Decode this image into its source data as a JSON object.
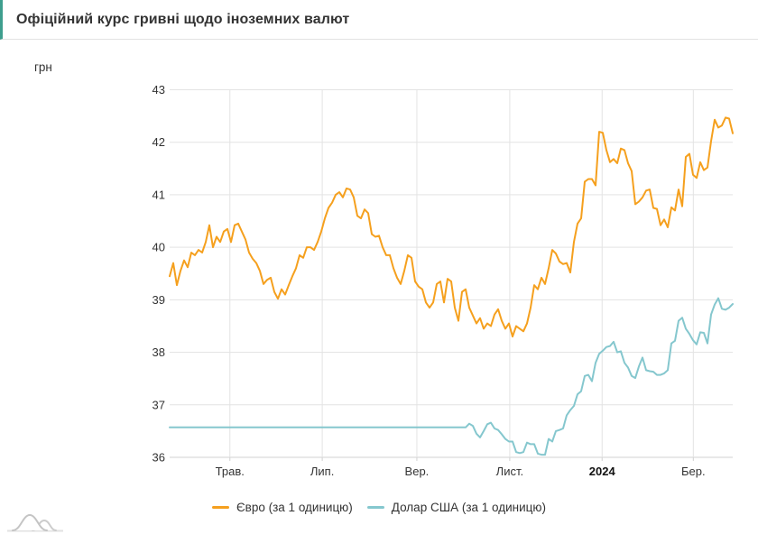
{
  "header": {
    "title": "Офіційний курс гривні щодо іноземних валют"
  },
  "chart": {
    "unit_label": "грн",
    "legend": [
      {
        "label": "Євро (за 1 одиницю)",
        "color": "#F5A01E"
      },
      {
        "label": "Долар США (за 1 одиницю)",
        "color": "#85C7CE"
      }
    ]
  },
  "colors": {
    "accent": "#3E9E8E",
    "grid": "#E3E3E3",
    "axis_line": "#D2D2D2",
    "text": "#333333",
    "tick_text": "#333333",
    "bold_tick_text": "#111111",
    "euro_line": "#F5A01E",
    "dollar_line": "#85C7CE"
  },
  "chart_data": {
    "type": "line",
    "title": "Офіційний курс гривні щодо іноземних валют",
    "xlabel": "",
    "ylabel": "грн",
    "ylim": [
      36,
      43
    ],
    "y_ticks": [
      43,
      42,
      41,
      40,
      39,
      38,
      37,
      36
    ],
    "x_ticks": [
      {
        "label": "Трав.",
        "pos": 0.107,
        "bold": false
      },
      {
        "label": "Лип.",
        "pos": 0.271,
        "bold": false
      },
      {
        "label": "Вер.",
        "pos": 0.439,
        "bold": false
      },
      {
        "label": "Лист.",
        "pos": 0.604,
        "bold": false
      },
      {
        "label": "2024",
        "pos": 0.768,
        "bold": true
      },
      {
        "label": "Бер.",
        "pos": 0.93,
        "bold": false
      }
    ],
    "grid": true,
    "legend_position": "bottom",
    "series": [
      {
        "name": "Євро (за 1 одиницю)",
        "color": "#F5A01E",
        "values": [
          39.45,
          39.7,
          39.28,
          39.55,
          39.75,
          39.62,
          39.9,
          39.85,
          39.95,
          39.9,
          40.1,
          40.42,
          40.0,
          40.2,
          40.1,
          40.3,
          40.35,
          40.1,
          40.42,
          40.45,
          40.3,
          40.15,
          39.9,
          39.78,
          39.7,
          39.55,
          39.3,
          39.38,
          39.42,
          39.15,
          39.02,
          39.2,
          39.1,
          39.28,
          39.45,
          39.6,
          39.85,
          39.8,
          40.0,
          40.0,
          39.95,
          40.1,
          40.3,
          40.55,
          40.75,
          40.85,
          41.0,
          41.05,
          40.95,
          41.12,
          41.1,
          40.95,
          40.6,
          40.55,
          40.72,
          40.65,
          40.25,
          40.2,
          40.22,
          40.0,
          39.85,
          39.85,
          39.6,
          39.42,
          39.3,
          39.55,
          39.85,
          39.8,
          39.35,
          39.25,
          39.2,
          38.95,
          38.85,
          38.95,
          39.3,
          39.35,
          38.95,
          39.4,
          39.35,
          38.85,
          38.6,
          39.15,
          39.2,
          38.85,
          38.7,
          38.55,
          38.65,
          38.45,
          38.55,
          38.5,
          38.72,
          38.82,
          38.6,
          38.45,
          38.55,
          38.3,
          38.5,
          38.45,
          38.4,
          38.55,
          38.85,
          39.28,
          39.2,
          39.42,
          39.3,
          39.6,
          39.95,
          39.88,
          39.73,
          39.68,
          39.7,
          39.52,
          40.1,
          40.45,
          40.55,
          41.25,
          41.3,
          41.3,
          41.18,
          42.2,
          42.18,
          41.85,
          41.62,
          41.68,
          41.6,
          41.88,
          41.85,
          41.6,
          41.45,
          40.82,
          40.87,
          40.95,
          41.08,
          41.1,
          40.75,
          40.73,
          40.42,
          40.53,
          40.38,
          40.76,
          40.7,
          41.1,
          40.78,
          41.72,
          41.78,
          41.38,
          41.32,
          41.62,
          41.47,
          41.52,
          42.02,
          42.43,
          42.28,
          42.32,
          42.47,
          42.45,
          42.17
        ]
      },
      {
        "name": "Долар США (за 1 одиницю)",
        "color": "#85C7CE",
        "values": [
          36.57,
          36.57,
          36.57,
          36.57,
          36.57,
          36.57,
          36.57,
          36.57,
          36.57,
          36.57,
          36.57,
          36.57,
          36.57,
          36.57,
          36.57,
          36.57,
          36.57,
          36.57,
          36.57,
          36.57,
          36.57,
          36.57,
          36.57,
          36.57,
          36.57,
          36.57,
          36.57,
          36.57,
          36.57,
          36.57,
          36.57,
          36.57,
          36.57,
          36.57,
          36.57,
          36.57,
          36.57,
          36.57,
          36.57,
          36.57,
          36.57,
          36.57,
          36.57,
          36.57,
          36.57,
          36.57,
          36.57,
          36.57,
          36.57,
          36.57,
          36.57,
          36.57,
          36.57,
          36.57,
          36.57,
          36.57,
          36.57,
          36.57,
          36.57,
          36.57,
          36.57,
          36.57,
          36.57,
          36.57,
          36.57,
          36.57,
          36.57,
          36.57,
          36.57,
          36.57,
          36.57,
          36.57,
          36.57,
          36.57,
          36.57,
          36.57,
          36.57,
          36.57,
          36.57,
          36.57,
          36.57,
          36.57,
          36.57,
          36.64,
          36.6,
          36.45,
          36.38,
          36.5,
          36.63,
          36.66,
          36.55,
          36.52,
          36.44,
          36.35,
          36.3,
          36.3,
          36.1,
          36.08,
          36.1,
          36.28,
          36.25,
          36.25,
          36.07,
          36.05,
          36.05,
          36.35,
          36.3,
          36.5,
          36.52,
          36.55,
          36.8,
          36.9,
          36.98,
          37.2,
          37.26,
          37.55,
          37.57,
          37.45,
          37.8,
          37.97,
          38.03,
          38.1,
          38.12,
          38.2,
          38.0,
          38.02,
          37.8,
          37.71,
          37.55,
          37.51,
          37.73,
          37.9,
          37.66,
          37.64,
          37.63,
          37.57,
          37.57,
          37.6,
          37.66,
          38.17,
          38.22,
          38.6,
          38.66,
          38.45,
          38.35,
          38.23,
          38.15,
          38.38,
          38.37,
          38.17,
          38.72,
          38.91,
          39.03,
          38.83,
          38.81,
          38.85,
          38.92
        ]
      }
    ]
  }
}
